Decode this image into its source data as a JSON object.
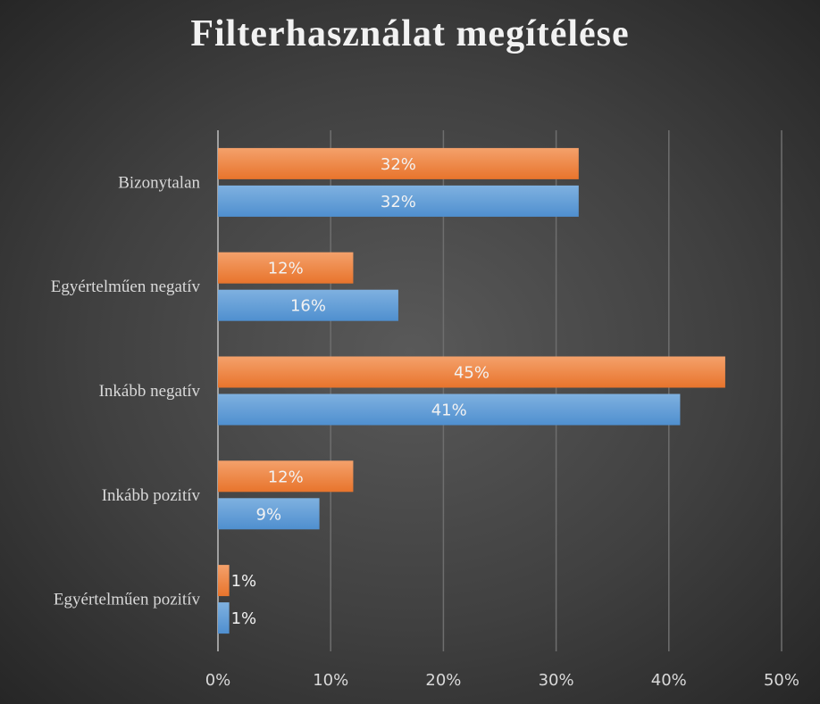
{
  "chart_data": {
    "type": "bar",
    "orientation": "horizontal",
    "title": "Filterhasználat megítélése",
    "categories": [
      "Bizonytalan",
      "Egyértelműen negatív",
      "Inkább negatív",
      "Inkább pozitív",
      "Egyértelműen pozitív"
    ],
    "series": [
      {
        "color": "#ed7d31",
        "values": [
          32,
          12,
          45,
          12,
          1
        ],
        "labels": [
          "32%",
          "12%",
          "45%",
          "12%",
          "1%"
        ]
      },
      {
        "color": "#5b9bd5",
        "values": [
          32,
          16,
          41,
          9,
          1
        ],
        "labels": [
          "32%",
          "16%",
          "41%",
          "9%",
          "1%"
        ]
      }
    ],
    "xlim": [
      0,
      50
    ],
    "xticks": [
      "0%",
      "10%",
      "20%",
      "30%",
      "40%",
      "50%"
    ],
    "grid": true,
    "legend": "none"
  }
}
